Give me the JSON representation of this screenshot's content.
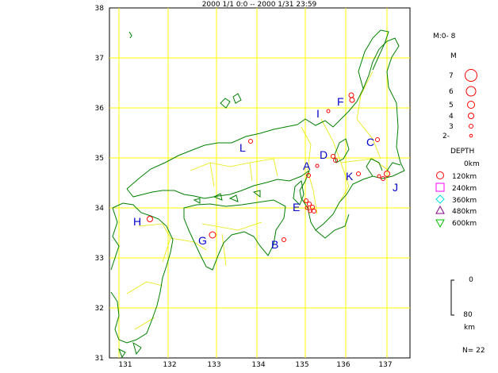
{
  "header": {
    "title": "2000 1/1  0:0 -- 2000 1/31 23:59"
  },
  "axes": {
    "lat_ticks": [
      "38",
      "37",
      "36",
      "35",
      "34",
      "33",
      "32",
      "31"
    ],
    "lon_ticks": [
      "131",
      "132",
      "133",
      "134",
      "135",
      "136",
      "137"
    ]
  },
  "regions": {
    "A": "A",
    "B": "B",
    "C": "C",
    "D": "D",
    "E": "E",
    "F": "F",
    "G": "G",
    "H": "H",
    "I": "I",
    "J": "J",
    "K": "K",
    "L": "L"
  },
  "legend": {
    "magnitude_range": "M:0- 8",
    "magnitude_title": "M",
    "magnitudes": [
      "7",
      "6",
      "5",
      "4",
      "3",
      "2-"
    ],
    "depth_title": "DEPTH",
    "depths": [
      "0km",
      "120km",
      "240km",
      "360km",
      "480km",
      "600km"
    ],
    "scale_top": "0",
    "scale_bottom": "80",
    "scale_unit": "km",
    "count": "N= 22"
  },
  "colors": {
    "coast": "#008000",
    "grid": "#ffff00",
    "event": "#ff0000",
    "label": "#0000cc",
    "depth_120": "#ff0000",
    "depth_240": "#ff00ff",
    "depth_360": "#00e0e0",
    "depth_480": "#800080",
    "depth_600": "#00c000"
  }
}
